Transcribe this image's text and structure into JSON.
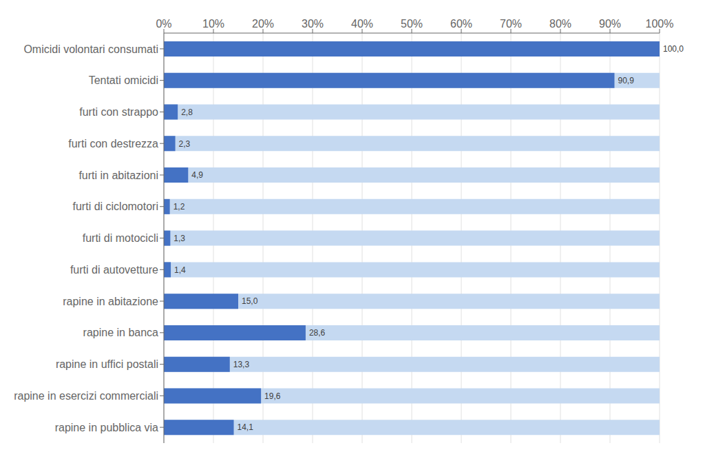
{
  "chart_data": {
    "type": "bar",
    "orientation": "horizontal",
    "categories": [
      "rapine in pubblica via",
      "rapine in esercizi commerciali",
      "rapine in uffici postali",
      "rapine in banca",
      "rapine in abitazione",
      "furti di autovetture",
      "furti di motocicli",
      "furti di ciclomotori",
      "furti in abitazioni",
      "furti con destrezza",
      "furti con strappo",
      "Tentati omicidi",
      "Omicidi volontari consumati"
    ],
    "series": [
      {
        "color": "#C5D9F1",
        "values": [
          100,
          100,
          100,
          100,
          100,
          100,
          100,
          100,
          100,
          100,
          100,
          100,
          100
        ]
      },
      {
        "color": "#4472C4",
        "data_labels": true,
        "values": [
          14.1,
          19.6,
          13.3,
          28.6,
          15.0,
          1.4,
          1.3,
          1.2,
          4.9,
          2.3,
          2.8,
          90.9,
          100.0
        ],
        "value_labels": [
          "14,1",
          "19,6",
          "13,3",
          "28,6",
          "15,0",
          "1,4",
          "1,3",
          "1,2",
          "4,9",
          "2,3",
          "2,8",
          "90,9",
          "100,0"
        ]
      }
    ],
    "xlim": [
      0,
      100
    ],
    "xticks": [
      {
        "value": 0,
        "label": "0%"
      },
      {
        "value": 10,
        "label": "10%"
      },
      {
        "value": 20,
        "label": "20%"
      },
      {
        "value": 30,
        "label": "30%"
      },
      {
        "value": 40,
        "label": "40%"
      },
      {
        "value": 50,
        "label": "50%"
      },
      {
        "value": 60,
        "label": "60%"
      },
      {
        "value": 70,
        "label": "70%"
      },
      {
        "value": 80,
        "label": "80%"
      },
      {
        "value": 90,
        "label": "90%"
      },
      {
        "value": 100,
        "label": "100%"
      }
    ],
    "grid": true
  }
}
